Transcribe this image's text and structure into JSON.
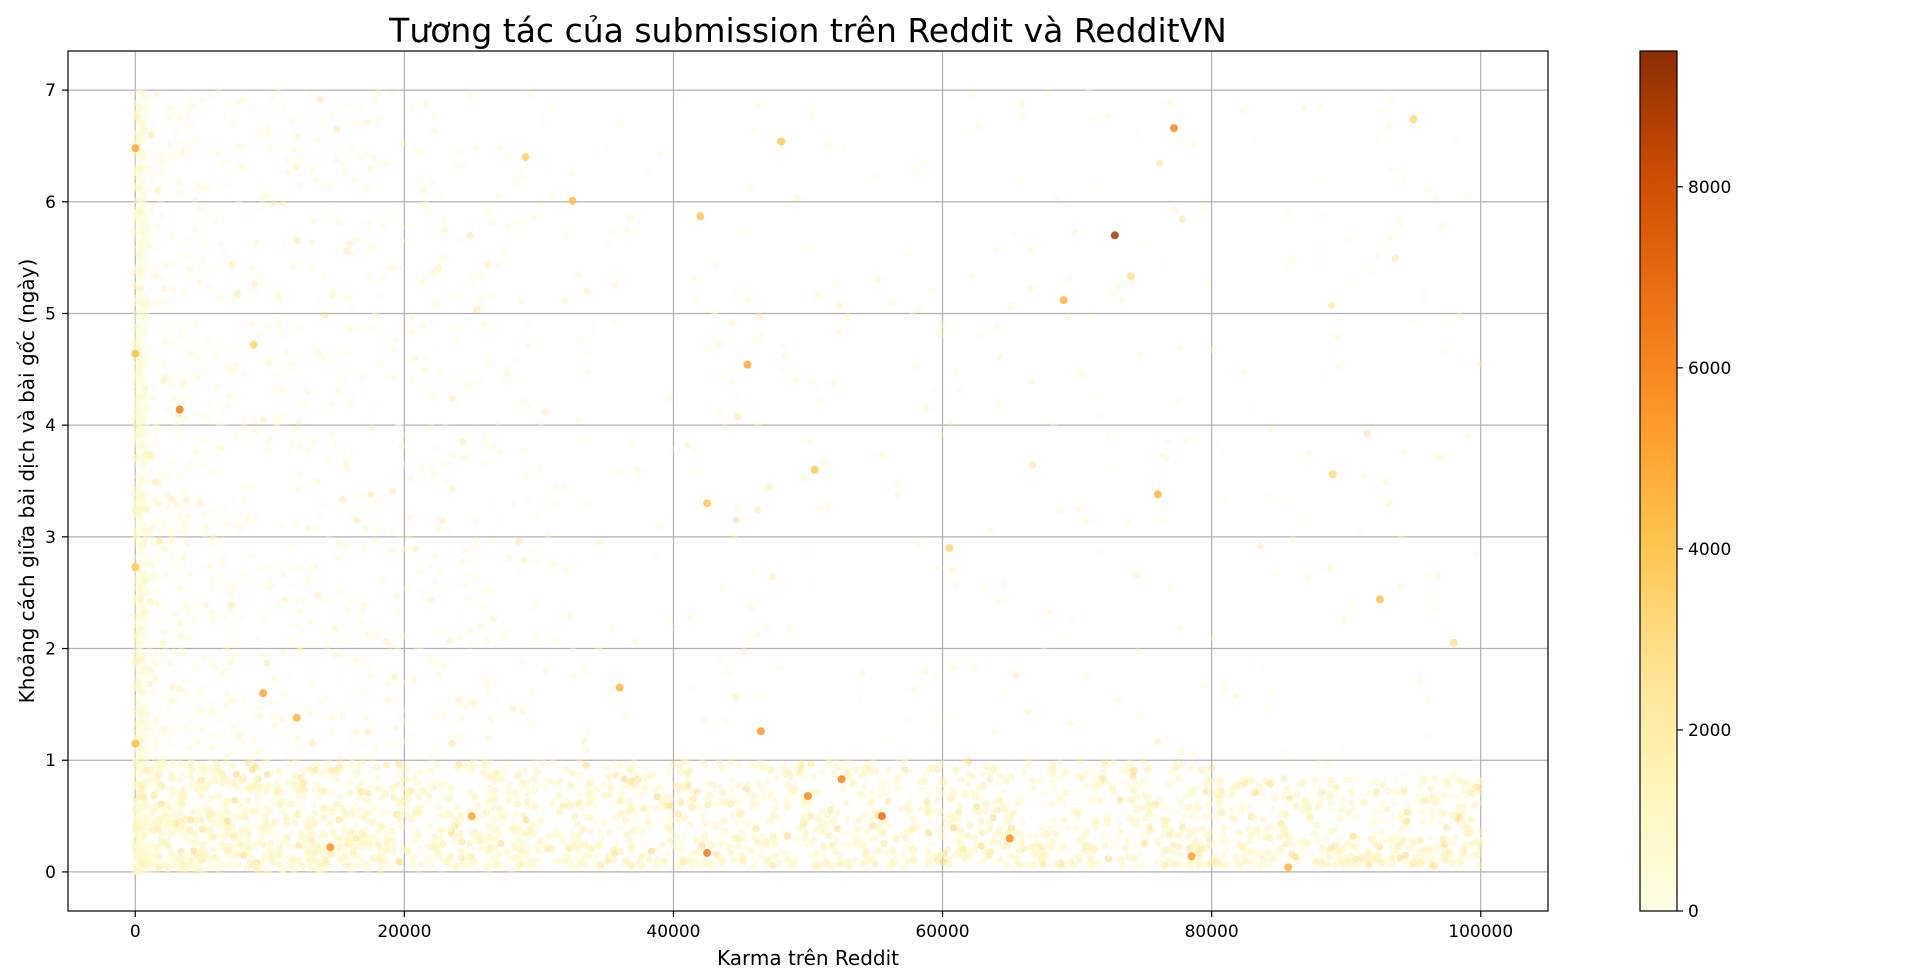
{
  "chart_data": {
    "type": "scatter",
    "title": "Tương tác của submission trên Reddit và RedditVN",
    "xlabel": "Karma trên Reddit",
    "ylabel": "Khoảng cách giữa bài dịch và bài gốc (ngày)",
    "xlim": [
      -5000,
      105000
    ],
    "ylim": [
      -0.35,
      7.35
    ],
    "xticks": [
      0,
      20000,
      40000,
      60000,
      80000,
      100000
    ],
    "xtick_labels": [
      "0",
      "20000",
      "40000",
      "60000",
      "80000",
      "100000"
    ],
    "yticks": [
      0,
      1,
      2,
      3,
      4,
      5,
      6,
      7
    ],
    "ytick_labels": [
      "0",
      "1",
      "2",
      "3",
      "4",
      "5",
      "6",
      "7"
    ],
    "grid": true,
    "colorbar": {
      "range": [
        0,
        9500
      ],
      "ticks": [
        0,
        2000,
        4000,
        6000,
        8000
      ],
      "tick_labels": [
        "0",
        "2000",
        "4000",
        "6000",
        "8000"
      ],
      "colormap": "YlOrBr",
      "stops": [
        "#fffee5",
        "#fff6bc",
        "#fee391",
        "#fec44f",
        "#fe9929",
        "#ec7014",
        "#cc4c02",
        "#8c2d04"
      ]
    },
    "highlight_points": [
      {
        "x": 72800,
        "y": 5.7,
        "color_value": 9000
      },
      {
        "x": 77200,
        "y": 6.66,
        "color_value": 6000
      },
      {
        "x": 3300,
        "y": 4.14,
        "color_value": 6500
      },
      {
        "x": 45500,
        "y": 4.54,
        "color_value": 5000
      },
      {
        "x": 69000,
        "y": 5.12,
        "color_value": 4500
      },
      {
        "x": 32500,
        "y": 6.01,
        "color_value": 4200
      },
      {
        "x": 42000,
        "y": 5.87,
        "color_value": 4000
      },
      {
        "x": 48000,
        "y": 6.54,
        "color_value": 3800
      },
      {
        "x": 29000,
        "y": 6.4,
        "color_value": 3600
      },
      {
        "x": 95000,
        "y": 6.74,
        "color_value": 3200
      },
      {
        "x": 50500,
        "y": 3.6,
        "color_value": 3800
      },
      {
        "x": 76000,
        "y": 3.38,
        "color_value": 4500
      },
      {
        "x": 46500,
        "y": 1.26,
        "color_value": 5500
      },
      {
        "x": 92500,
        "y": 2.44,
        "color_value": 4000
      },
      {
        "x": 9500,
        "y": 1.6,
        "color_value": 5000
      },
      {
        "x": 12000,
        "y": 1.38,
        "color_value": 4500
      },
      {
        "x": 55500,
        "y": 0.5,
        "color_value": 7000
      },
      {
        "x": 50000,
        "y": 0.68,
        "color_value": 6000
      },
      {
        "x": 52500,
        "y": 0.83,
        "color_value": 6200
      },
      {
        "x": 42500,
        "y": 0.17,
        "color_value": 6500
      },
      {
        "x": 14500,
        "y": 0.22,
        "color_value": 5500
      },
      {
        "x": 85700,
        "y": 0.04,
        "color_value": 4500
      },
      {
        "x": 78500,
        "y": 0.14,
        "color_value": 5200
      },
      {
        "x": 0,
        "y": 6.48,
        "color_value": 5000
      },
      {
        "x": 0,
        "y": 4.64,
        "color_value": 4200
      },
      {
        "x": 0,
        "y": 2.73,
        "color_value": 3900
      },
      {
        "x": 0,
        "y": 1.15,
        "color_value": 4300
      },
      {
        "x": 89000,
        "y": 3.56,
        "color_value": 3000
      },
      {
        "x": 98000,
        "y": 2.05,
        "color_value": 2600
      },
      {
        "x": 74000,
        "y": 5.33,
        "color_value": 2800
      },
      {
        "x": 60500,
        "y": 2.9,
        "color_value": 3200
      },
      {
        "x": 65000,
        "y": 0.3,
        "color_value": 5800
      },
      {
        "x": 25000,
        "y": 0.5,
        "color_value": 5000
      },
      {
        "x": 8800,
        "y": 4.72,
        "color_value": 3400
      },
      {
        "x": 42500,
        "y": 3.3,
        "color_value": 3800
      },
      {
        "x": 36000,
        "y": 1.65,
        "color_value": 4500
      }
    ]
  }
}
